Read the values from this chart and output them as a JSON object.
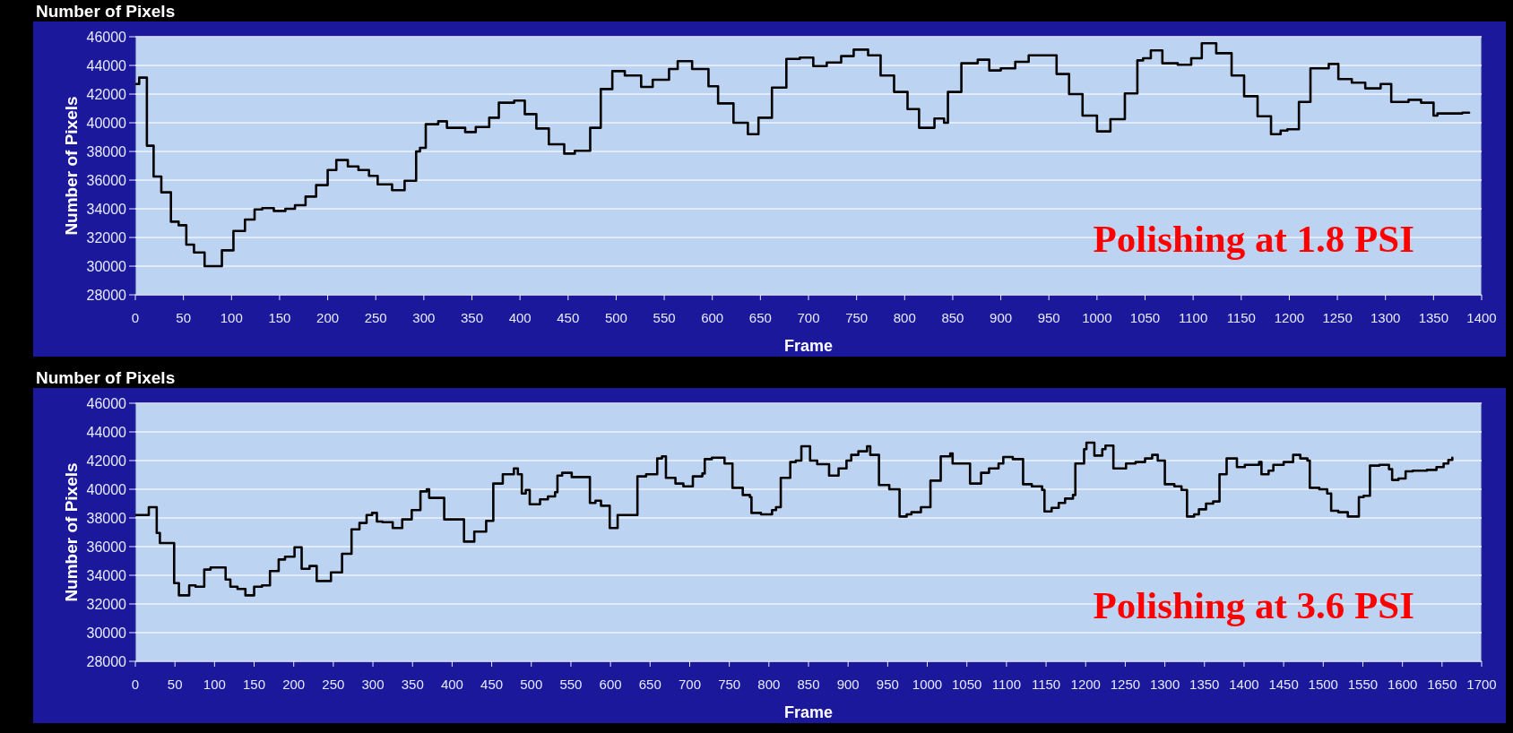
{
  "chart_data": [
    {
      "type": "step",
      "title": "Number of Pixels",
      "xlabel": "Frame",
      "ylabel": "Number of Pixels",
      "annotations": [
        "Polishing at 1.8 PSI"
      ],
      "grid": "y",
      "line_style": "solid",
      "xlim": [
        0,
        1400
      ],
      "xticks": [
        0,
        50,
        100,
        150,
        200,
        250,
        300,
        350,
        400,
        450,
        500,
        550,
        600,
        650,
        700,
        750,
        800,
        850,
        900,
        950,
        1000,
        1050,
        1100,
        1150,
        1200,
        1250,
        1300,
        1350,
        1400
      ],
      "ylim": [
        28000,
        46000
      ],
      "yticks": [
        28000,
        30000,
        32000,
        34000,
        36000,
        38000,
        40000,
        42000,
        44000,
        46000
      ],
      "series": [
        {
          "color": "#000000",
          "x": [
            0,
            4,
            12,
            19,
            27,
            37,
            45,
            53,
            61,
            72,
            90,
            102,
            114,
            124,
            132,
            144,
            156,
            166,
            177,
            188,
            200,
            209,
            221,
            232,
            243,
            252,
            267,
            280,
            292,
            296,
            302,
            315,
            324,
            343,
            354,
            368,
            378,
            394,
            405,
            417,
            430,
            446,
            457,
            473,
            484,
            496,
            509,
            526,
            538,
            555,
            564,
            579,
            596,
            606,
            622,
            637,
            648,
            662,
            677,
            691,
            705,
            719,
            734,
            747,
            762,
            775,
            789,
            803,
            815,
            831,
            841,
            845,
            859,
            876,
            888,
            900,
            915,
            929,
            958,
            971,
            985,
            1000,
            1014,
            1029,
            1042,
            1048,
            1056,
            1068,
            1084,
            1098,
            1109,
            1124,
            1140,
            1153,
            1167,
            1181,
            1191,
            1198,
            1210,
            1222,
            1241,
            1251,
            1265,
            1279,
            1295,
            1306,
            1324,
            1337,
            1350,
            1354,
            1380,
            1387
          ],
          "values": [
            42700,
            43150,
            38400,
            36250,
            35150,
            33100,
            32850,
            31500,
            30950,
            30000,
            31100,
            32450,
            33250,
            33950,
            34050,
            33850,
            34000,
            34250,
            34850,
            35650,
            36700,
            37400,
            36950,
            36700,
            36300,
            35700,
            35300,
            35950,
            38000,
            38250,
            39900,
            40100,
            39650,
            39350,
            39700,
            40350,
            41400,
            41550,
            40600,
            39600,
            38500,
            37850,
            38050,
            39650,
            42350,
            43600,
            43300,
            42500,
            43000,
            43750,
            44300,
            43750,
            42550,
            41350,
            40000,
            39200,
            40350,
            42450,
            44450,
            44550,
            43950,
            44200,
            44650,
            45100,
            44700,
            43300,
            42150,
            40950,
            39650,
            40300,
            40000,
            42150,
            44150,
            44400,
            43650,
            43800,
            44250,
            44700,
            43400,
            42000,
            40500,
            39400,
            40250,
            42050,
            44350,
            44500,
            45050,
            44150,
            44050,
            44500,
            45550,
            44850,
            43300,
            41850,
            40450,
            39200,
            39450,
            39550,
            41450,
            43800,
            44100,
            43050,
            42800,
            42400,
            42700,
            41450,
            41600,
            41400,
            40500,
            40650,
            40700,
            40700
          ]
        }
      ]
    },
    {
      "type": "step",
      "title": "Number of Pixels",
      "xlabel": "Frame",
      "ylabel": "Number of Pixels",
      "annotations": [
        "Polishing at 3.6 PSI"
      ],
      "grid": "y",
      "line_style": "solid",
      "xlim": [
        0,
        1700
      ],
      "xticks": [
        0,
        50,
        100,
        150,
        200,
        250,
        300,
        350,
        400,
        450,
        500,
        550,
        600,
        650,
        700,
        750,
        800,
        850,
        900,
        950,
        1000,
        1050,
        1100,
        1150,
        1200,
        1250,
        1300,
        1350,
        1400,
        1450,
        1500,
        1550,
        1600,
        1650,
        1700
      ],
      "ylim": [
        28000,
        46000
      ],
      "yticks": [
        28000,
        30000,
        32000,
        34000,
        36000,
        38000,
        40000,
        42000,
        44000,
        46000
      ],
      "series": [
        {
          "color": "#000000",
          "x": [
            0,
            17,
            27,
            31,
            49,
            55,
            68,
            76,
            87,
            95,
            114,
            120,
            129,
            139,
            150,
            160,
            170,
            181,
            189,
            201,
            210,
            220,
            229,
            247,
            261,
            273,
            283,
            292,
            299,
            305,
            312,
            325,
            337,
            349,
            360,
            368,
            371,
            390,
            415,
            428,
            443,
            452,
            464,
            478,
            483,
            488,
            493,
            498,
            511,
            521,
            530,
            533,
            539,
            551,
            574,
            581,
            588,
            599,
            609,
            634,
            645,
            659,
            665,
            670,
            682,
            692,
            704,
            716,
            719,
            728,
            744,
            754,
            767,
            776,
            778,
            790,
            804,
            809,
            815,
            827,
            834,
            841,
            852,
            861,
            876,
            888,
            898,
            904,
            913,
            924,
            928,
            939,
            952,
            965,
            974,
            980,
            992,
            1004,
            1017,
            1029,
            1032,
            1054,
            1068,
            1078,
            1090,
            1096,
            1108,
            1121,
            1132,
            1145,
            1148,
            1157,
            1166,
            1174,
            1184,
            1187,
            1198,
            1201,
            1211,
            1221,
            1225,
            1235,
            1251,
            1263,
            1275,
            1284,
            1291,
            1300,
            1312,
            1321,
            1328,
            1337,
            1343,
            1352,
            1361,
            1369,
            1378,
            1391,
            1401,
            1419,
            1422,
            1431,
            1437,
            1450,
            1462,
            1471,
            1480,
            1483,
            1495,
            1505,
            1510,
            1519,
            1531,
            1545,
            1551,
            1559,
            1571,
            1583,
            1587,
            1595,
            1604,
            1613,
            1631,
            1643,
            1652,
            1658,
            1663
          ],
          "values": [
            38200,
            38750,
            36950,
            36250,
            33450,
            32600,
            33300,
            33200,
            34400,
            34550,
            33700,
            33200,
            33050,
            32600,
            33200,
            33300,
            34300,
            35100,
            35300,
            35950,
            34450,
            34650,
            33600,
            34200,
            35500,
            37200,
            37650,
            38200,
            38350,
            37750,
            37700,
            37300,
            37900,
            38550,
            39850,
            40000,
            39400,
            37900,
            36350,
            37050,
            37800,
            40400,
            41050,
            41450,
            41050,
            39700,
            39950,
            38950,
            39300,
            39500,
            39800,
            40950,
            41150,
            40850,
            39050,
            39200,
            38850,
            37300,
            38200,
            40900,
            41050,
            42150,
            42300,
            40800,
            40400,
            40200,
            40900,
            41100,
            42100,
            42200,
            41800,
            40100,
            39600,
            39450,
            38350,
            38250,
            38550,
            38750,
            40800,
            41900,
            42000,
            43000,
            42000,
            41750,
            40950,
            41450,
            42000,
            42400,
            42650,
            43000,
            42400,
            40300,
            40000,
            38100,
            38250,
            38400,
            38750,
            40600,
            42300,
            42500,
            41800,
            40400,
            41150,
            41450,
            41800,
            42250,
            42100,
            40350,
            40200,
            39950,
            38450,
            38700,
            39050,
            39350,
            39600,
            41800,
            42800,
            43250,
            42350,
            42800,
            43050,
            41450,
            41800,
            41900,
            42150,
            42400,
            42000,
            40350,
            40200,
            39950,
            38100,
            38250,
            38600,
            39000,
            39150,
            41050,
            42150,
            41550,
            41700,
            41900,
            41050,
            41300,
            41700,
            41900,
            42400,
            42150,
            42000,
            40100,
            40000,
            39700,
            38500,
            38400,
            38100,
            39450,
            39550,
            41650,
            41700,
            41400,
            40650,
            40750,
            41250,
            41300,
            41350,
            41550,
            41800,
            42050,
            42200
          ]
        }
      ]
    }
  ]
}
